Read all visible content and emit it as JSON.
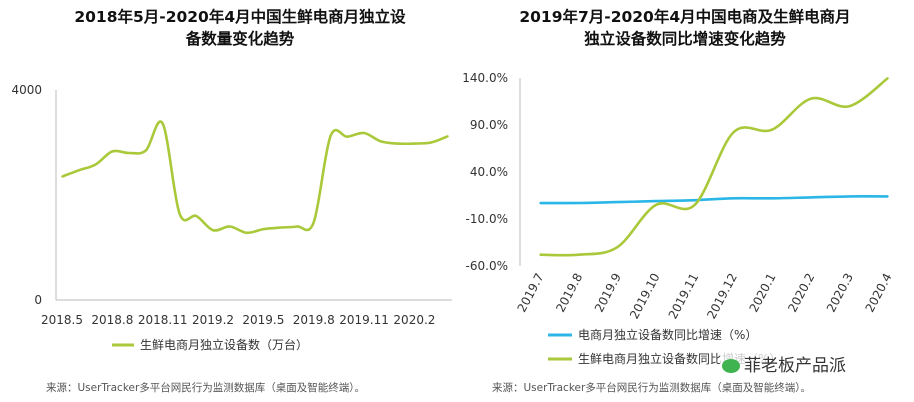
{
  "left": {
    "title_line1": "2018年5月-2020年4月中国生鲜电商月独立设",
    "title_line2": "备数量变化趋势",
    "source": "来源：UserTracker多平台网民行为监测数据库（桌面及智能终端）。"
  },
  "right": {
    "title_line1": "2019年7月-2020年4月中国电商及生鲜电商月",
    "title_line2": "独立设备数同比增速变化趋势",
    "source": "来源：UserTracker多平台网民行为监测数据库（桌面及智能终端）。"
  },
  "watermark": "菲老板产品派",
  "colors": {
    "green": "#a9c83a",
    "blue": "#2ab6e6",
    "axis": "#bbbbbb"
  },
  "chart_data": [
    {
      "type": "line",
      "xlabel": "",
      "ylabel": "",
      "ylim": [
        0,
        4000
      ],
      "y_ticks": [
        "4000",
        "0"
      ],
      "x_ticks": [
        "2018.5",
        "2018.8",
        "2018.11",
        "2019.2",
        "2019.5",
        "2019.8",
        "2019.11",
        "2020.2"
      ],
      "x": [
        "2018.5",
        "2018.6",
        "2018.7",
        "2018.8",
        "2018.9",
        "2018.10",
        "2018.11",
        "2018.12",
        "2019.1",
        "2019.2",
        "2019.3",
        "2019.4",
        "2019.5",
        "2019.6",
        "2019.7",
        "2019.8",
        "2019.9",
        "2019.10",
        "2019.11",
        "2019.12",
        "2020.1",
        "2020.2",
        "2020.3",
        "2020.4"
      ],
      "series": [
        {
          "name": "生鲜电商月独立设备数（万台）",
          "values": [
            2350,
            2470,
            2580,
            2830,
            2800,
            2850,
            3360,
            1650,
            1600,
            1330,
            1400,
            1280,
            1350,
            1380,
            1400,
            1480,
            3120,
            3110,
            3180,
            3020,
            2980,
            2980,
            3000,
            3120
          ]
        }
      ],
      "legend_position": "bottom",
      "grid": false
    },
    {
      "type": "line",
      "ylim": [
        -60,
        140
      ],
      "y_ticks": [
        "140.0%",
        "90.0%",
        "40.0%",
        "-10.0%",
        "-60.0%"
      ],
      "x": [
        "2019.7",
        "2019.8",
        "2019.9",
        "2019.10",
        "2019.11",
        "2019.12",
        "2020.1",
        "2020.2",
        "2020.3",
        "2020.4"
      ],
      "series": [
        {
          "name": "电商月独立设备数同比增速（%）",
          "values": [
            7,
            7,
            8,
            9,
            10,
            12,
            12,
            13,
            14,
            14
          ]
        },
        {
          "name": "生鲜电商月独立设备数同比增速（%）",
          "values": [
            -48,
            -48,
            -40,
            5,
            5,
            82,
            85,
            118,
            110,
            140
          ]
        }
      ],
      "legend_position": "bottom",
      "grid": false
    }
  ]
}
